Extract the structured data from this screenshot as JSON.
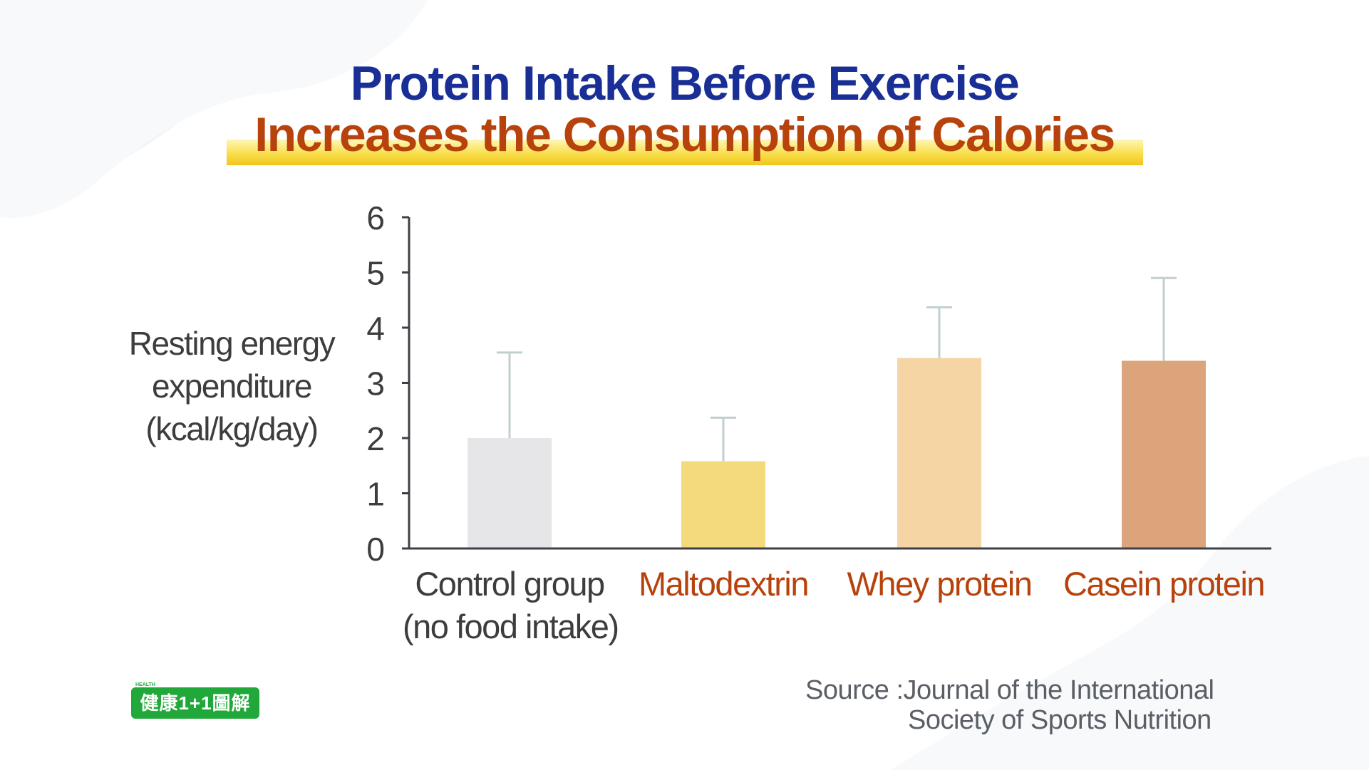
{
  "title": {
    "line1": "Protein Intake Before Exercise",
    "line2": "Increases the Consumption of Calories"
  },
  "colors": {
    "title_line1": "#1a2f96",
    "title_line2": "#b8420c",
    "axis": "#3d4147",
    "error_bar": "#c2cfcf",
    "label_dark": "#3d3d3d",
    "label_accent": "#b8420c"
  },
  "chart_data": {
    "type": "bar",
    "ylabel": "Resting energy\nexpenditure\n(kcal/kg/day)",
    "xlabel": "",
    "ylim": [
      0,
      6
    ],
    "yticks": [
      0,
      1,
      2,
      3,
      4,
      5,
      6
    ],
    "grid": false,
    "categories": [
      {
        "label": "Control group",
        "sublabel": "(no food intake)",
        "label_color": "#3d3d3d"
      },
      {
        "label": "Maltodextrin",
        "sublabel": "",
        "label_color": "#b8420c"
      },
      {
        "label": "Whey protein",
        "sublabel": "",
        "label_color": "#b8420c"
      },
      {
        "label": "Casein protein",
        "sublabel": "",
        "label_color": "#b8420c"
      }
    ],
    "values": [
      2.0,
      1.58,
      3.45,
      3.4
    ],
    "error_upper": [
      3.55,
      2.37,
      4.37,
      4.9
    ],
    "bar_colors": [
      "#e6e6e8",
      "#f4d97d",
      "#f4d5a3",
      "#dba47b"
    ]
  },
  "logo": {
    "text": "健康1+1圖解",
    "tag": "HEALTH"
  },
  "source": {
    "line1": "Source :Journal of the International",
    "line2": "Society of Sports Nutrition"
  }
}
